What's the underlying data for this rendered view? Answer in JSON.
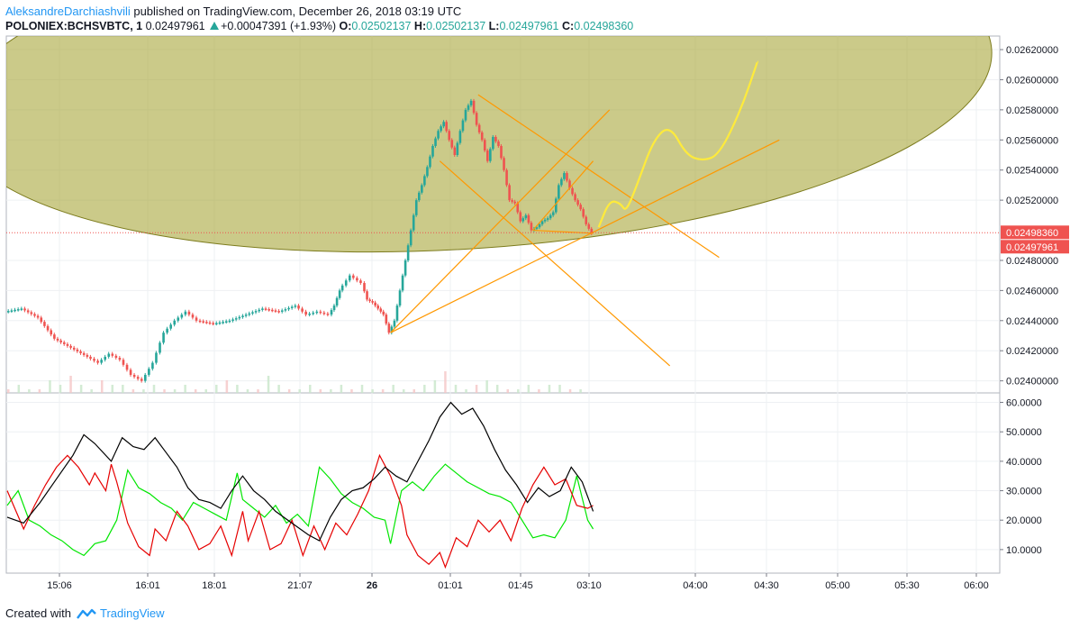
{
  "header": {
    "author": "AleksandreDarchiashvili",
    "published": " published on TradingView.com, December 26, 2018 03:19 UTC",
    "symbol": "POLONIEX:BCHSVBTC, 1",
    "last": "0.02497961",
    "change": "+0.00047391 (+1.93%)",
    "o_label": "O:",
    "o": "0.02502137",
    "h_label": "H:",
    "h": "0.02502137",
    "l_label": "L:",
    "l": "0.02497961",
    "c_label": "C:",
    "c": "0.02498360"
  },
  "footer": {
    "created_with": "Created with",
    "brand": "TradingView"
  },
  "colors": {
    "up": "#26a69a",
    "down": "#ef5350",
    "ellipse": "#a8a73a",
    "lines": "#ff9800",
    "projection": "#ffeb3b",
    "price_badge": "#ef5350"
  },
  "chart_data": {
    "type": "candlestick",
    "symbol": "POLONIEX:BCHSVBTC",
    "interval": "1",
    "x_ticks": [
      "15:06",
      "16:01",
      "18:01",
      "21:07",
      "26",
      "01:01",
      "01:45",
      "03:10",
      "04:00",
      "04:30",
      "05:00",
      "05:30",
      "06:00"
    ],
    "y_ticks": [
      "0.02620000",
      "0.02600000",
      "0.02580000",
      "0.02560000",
      "0.02540000",
      "0.02520000",
      "0.02480000",
      "0.02460000",
      "0.02440000",
      "0.02420000",
      "0.02400000"
    ],
    "price_min": 0.02392,
    "price_max": 0.02629,
    "price_labels": [
      "0.02498360",
      "0.02497961"
    ],
    "price_path": [
      [
        0,
        0.02446
      ],
      [
        3,
        0.02448
      ],
      [
        6,
        0.02442
      ],
      [
        9,
        0.02428
      ],
      [
        12,
        0.02422
      ],
      [
        15,
        0.02416
      ],
      [
        17,
        0.02412
      ],
      [
        19,
        0.02418
      ],
      [
        21,
        0.02414
      ],
      [
        23,
        0.02404
      ],
      [
        25,
        0.024
      ],
      [
        27,
        0.02412
      ],
      [
        29,
        0.02432
      ],
      [
        31,
        0.0244
      ],
      [
        33,
        0.02446
      ],
      [
        35,
        0.0244
      ],
      [
        38,
        0.02438
      ],
      [
        41,
        0.0244
      ],
      [
        44,
        0.02444
      ],
      [
        47,
        0.02448
      ],
      [
        50,
        0.02446
      ],
      [
        53,
        0.0245
      ],
      [
        55,
        0.02444
      ],
      [
        57,
        0.02446
      ],
      [
        59,
        0.02444
      ],
      [
        60,
        0.0245
      ],
      [
        61,
        0.0246
      ],
      [
        63,
        0.0247
      ],
      [
        65,
        0.02465
      ],
      [
        66,
        0.02454
      ],
      [
        67,
        0.02452
      ],
      [
        68,
        0.02448
      ],
      [
        69,
        0.02444
      ],
      [
        70,
        0.02432
      ],
      [
        71,
        0.0244
      ],
      [
        72,
        0.0246
      ],
      [
        73,
        0.0248
      ],
      [
        74,
        0.025
      ],
      [
        75,
        0.0252
      ],
      [
        76,
        0.0253
      ],
      [
        77,
        0.02542
      ],
      [
        78,
        0.02556
      ],
      [
        79,
        0.02566
      ],
      [
        80,
        0.02572
      ],
      [
        81,
        0.0256
      ],
      [
        82,
        0.0255
      ],
      [
        83,
        0.02566
      ],
      [
        84,
        0.0258
      ],
      [
        85,
        0.02586
      ],
      [
        86,
        0.0257
      ],
      [
        87,
        0.0256
      ],
      [
        88,
        0.02546
      ],
      [
        89,
        0.02562
      ],
      [
        90,
        0.02556
      ],
      [
        91,
        0.0254
      ],
      [
        92,
        0.0252
      ],
      [
        93,
        0.02518
      ],
      [
        94,
        0.02506
      ],
      [
        95,
        0.0251
      ],
      [
        96,
        0.025
      ],
      [
        97,
        0.02502
      ],
      [
        98,
        0.02506
      ],
      [
        99,
        0.02508
      ],
      [
        100,
        0.02512
      ],
      [
        101,
        0.0253
      ],
      [
        102,
        0.02538
      ],
      [
        103,
        0.02528
      ],
      [
        104,
        0.0252
      ],
      [
        105,
        0.02514
      ],
      [
        106,
        0.02504
      ],
      [
        107,
        0.02498
      ]
    ],
    "volume": [
      0,
      1,
      0,
      0,
      2,
      1,
      3,
      1,
      0,
      2,
      1,
      1,
      0,
      0,
      1,
      0,
      0,
      1,
      0,
      0,
      1,
      2,
      1,
      0,
      0,
      3,
      1,
      0,
      0,
      1,
      0,
      0,
      1,
      0,
      1,
      0,
      0,
      1,
      0,
      0,
      1,
      2,
      4,
      1,
      0,
      1,
      2,
      1,
      0,
      0,
      1,
      0,
      1,
      1,
      0,
      0
    ],
    "indicator_range": [
      2,
      62
    ],
    "indicator_ticks": [
      "60.0000",
      "50.0000",
      "40.0000",
      "30.0000",
      "20.0000",
      "10.0000"
    ],
    "indicator_black": [
      [
        0,
        21
      ],
      [
        3,
        19
      ],
      [
        6,
        26
      ],
      [
        9,
        34
      ],
      [
        12,
        42
      ],
      [
        14,
        49
      ],
      [
        16,
        46
      ],
      [
        19,
        40
      ],
      [
        21,
        48
      ],
      [
        23,
        45
      ],
      [
        25,
        44
      ],
      [
        27,
        48
      ],
      [
        29,
        43
      ],
      [
        31,
        38
      ],
      [
        33,
        31
      ],
      [
        35,
        27
      ],
      [
        37,
        26
      ],
      [
        39,
        24
      ],
      [
        41,
        30
      ],
      [
        43,
        35
      ],
      [
        45,
        30
      ],
      [
        47,
        27
      ],
      [
        49,
        23
      ],
      [
        52,
        19
      ],
      [
        55,
        15
      ],
      [
        57,
        13
      ],
      [
        59,
        21
      ],
      [
        61,
        27
      ],
      [
        63,
        30
      ],
      [
        65,
        31
      ],
      [
        67,
        34
      ],
      [
        69,
        38
      ],
      [
        71,
        35
      ],
      [
        73,
        33
      ],
      [
        75,
        40
      ],
      [
        77,
        47
      ],
      [
        79,
        55
      ],
      [
        81,
        60
      ],
      [
        83,
        56
      ],
      [
        85,
        58
      ],
      [
        87,
        52
      ],
      [
        89,
        44
      ],
      [
        91,
        37
      ],
      [
        93,
        32
      ],
      [
        95,
        26
      ],
      [
        97,
        31
      ],
      [
        99,
        28
      ],
      [
        101,
        30
      ],
      [
        103,
        38
      ],
      [
        105,
        33
      ],
      [
        107,
        23
      ]
    ],
    "indicator_red": [
      [
        0,
        30
      ],
      [
        3,
        17
      ],
      [
        5,
        25
      ],
      [
        7,
        32
      ],
      [
        9,
        38
      ],
      [
        11,
        42
      ],
      [
        13,
        38
      ],
      [
        15,
        32
      ],
      [
        16,
        36
      ],
      [
        18,
        30
      ],
      [
        19,
        39
      ],
      [
        20,
        33
      ],
      [
        22,
        19
      ],
      [
        24,
        11
      ],
      [
        26,
        8
      ],
      [
        27,
        17
      ],
      [
        29,
        13
      ],
      [
        31,
        23
      ],
      [
        33,
        18
      ],
      [
        35,
        10
      ],
      [
        37,
        12
      ],
      [
        39,
        18
      ],
      [
        41,
        8
      ],
      [
        43,
        23
      ],
      [
        44,
        13
      ],
      [
        46,
        23
      ],
      [
        48,
        10
      ],
      [
        50,
        12
      ],
      [
        52,
        20
      ],
      [
        54,
        8
      ],
      [
        56,
        18
      ],
      [
        58,
        10
      ],
      [
        60,
        19
      ],
      [
        62,
        15
      ],
      [
        64,
        22
      ],
      [
        66,
        30
      ],
      [
        68,
        42
      ],
      [
        70,
        35
      ],
      [
        72,
        25
      ],
      [
        73,
        15
      ],
      [
        75,
        8
      ],
      [
        77,
        5
      ],
      [
        79,
        9
      ],
      [
        80,
        4
      ],
      [
        82,
        14
      ],
      [
        84,
        11
      ],
      [
        86,
        20
      ],
      [
        88,
        16
      ],
      [
        90,
        20
      ],
      [
        92,
        13
      ],
      [
        94,
        24
      ],
      [
        96,
        32
      ],
      [
        98,
        38
      ],
      [
        100,
        32
      ],
      [
        102,
        34
      ],
      [
        104,
        25
      ],
      [
        106,
        24
      ],
      [
        107,
        25
      ]
    ],
    "indicator_green": [
      [
        0,
        25
      ],
      [
        2,
        30
      ],
      [
        4,
        20
      ],
      [
        6,
        18
      ],
      [
        8,
        15
      ],
      [
        10,
        13
      ],
      [
        12,
        10
      ],
      [
        14,
        8
      ],
      [
        16,
        12
      ],
      [
        18,
        13
      ],
      [
        20,
        20
      ],
      [
        22,
        37
      ],
      [
        24,
        31
      ],
      [
        26,
        29
      ],
      [
        28,
        26
      ],
      [
        30,
        24
      ],
      [
        32,
        20
      ],
      [
        34,
        26
      ],
      [
        36,
        24
      ],
      [
        38,
        22
      ],
      [
        40,
        20
      ],
      [
        42,
        36
      ],
      [
        43,
        27
      ],
      [
        45,
        24
      ],
      [
        47,
        21
      ],
      [
        49,
        25
      ],
      [
        51,
        19
      ],
      [
        53,
        22
      ],
      [
        55,
        18
      ],
      [
        57,
        38
      ],
      [
        59,
        34
      ],
      [
        61,
        29
      ],
      [
        63,
        26
      ],
      [
        65,
        24
      ],
      [
        67,
        21
      ],
      [
        69,
        20
      ],
      [
        70,
        12
      ],
      [
        72,
        30
      ],
      [
        74,
        33
      ],
      [
        76,
        30
      ],
      [
        78,
        35
      ],
      [
        80,
        39
      ],
      [
        82,
        36
      ],
      [
        84,
        33
      ],
      [
        86,
        31
      ],
      [
        88,
        29
      ],
      [
        90,
        28
      ],
      [
        92,
        26
      ],
      [
        94,
        20
      ],
      [
        96,
        14
      ],
      [
        98,
        15
      ],
      [
        100,
        14
      ],
      [
        102,
        20
      ],
      [
        104,
        35
      ],
      [
        106,
        20
      ],
      [
        107,
        17
      ]
    ],
    "ellipse": {
      "cx": 85,
      "cy": 0.02596,
      "rx": 95,
      "ry": 0.00108
    },
    "trend_lines": [
      [
        [
          70,
          0.02432
        ],
        [
          110,
          0.0258
        ]
      ],
      [
        [
          70,
          0.02432
        ],
        [
          141,
          0.0256
        ]
      ],
      [
        [
          86,
          0.0259
        ],
        [
          130,
          0.02482
        ]
      ],
      [
        [
          79,
          0.02546
        ],
        [
          121,
          0.0241
        ]
      ],
      [
        [
          96,
          0.025
        ],
        [
          107,
          0.02546
        ]
      ],
      [
        [
          96,
          0.025
        ],
        [
          107,
          0.02498
        ]
      ]
    ],
    "projection": [
      [
        108,
        0.02502
      ],
      [
        110,
        0.0252
      ],
      [
        112,
        0.02518
      ],
      [
        113,
        0.02512
      ],
      [
        115,
        0.0253
      ],
      [
        118,
        0.0256
      ],
      [
        121,
        0.0257
      ],
      [
        124,
        0.0255
      ],
      [
        127,
        0.02546
      ],
      [
        130,
        0.0255
      ],
      [
        134,
        0.0258
      ],
      [
        137,
        0.02612
      ]
    ],
    "grid": true
  }
}
